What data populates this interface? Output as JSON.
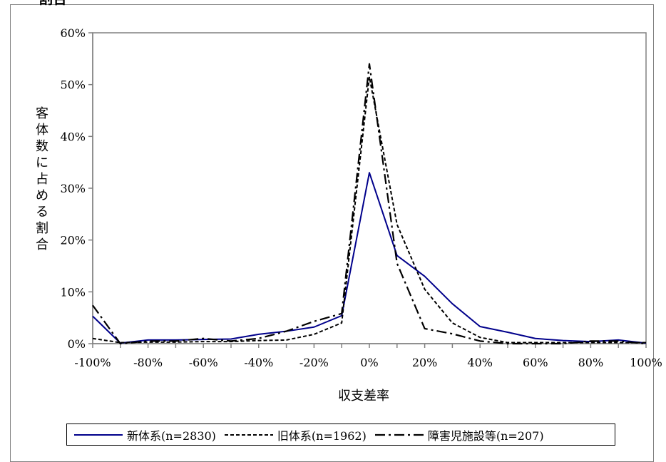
{
  "corner_text": "割合",
  "chart_data": {
    "type": "line",
    "x": [
      -100,
      -90,
      -80,
      -70,
      -60,
      -50,
      -40,
      -30,
      -20,
      -10,
      0,
      10,
      20,
      30,
      40,
      50,
      60,
      70,
      80,
      90,
      100
    ],
    "x_tick_labels": [
      "-100%",
      "-80%",
      "-60%",
      "-40%",
      "-20%",
      "0%",
      "20%",
      "40%",
      "60%",
      "80%",
      "100%"
    ],
    "y_tick_labels": [
      "0%",
      "10%",
      "20%",
      "30%",
      "40%",
      "50%",
      "60%"
    ],
    "xlim": [
      -100,
      100
    ],
    "ylim": [
      0,
      60
    ],
    "xlabel": "収支差率",
    "ylabel": "客体数に占める割合",
    "grid": false,
    "legend_position": "bottom",
    "series": [
      {
        "name": "新体系(n=2830)",
        "color": "#00008b",
        "dash": "solid",
        "values": [
          5.3,
          0.1,
          0.7,
          0.7,
          0.8,
          0.9,
          1.8,
          2.4,
          3.2,
          5.4,
          33.0,
          17.0,
          13.0,
          7.7,
          3.3,
          2.2,
          1.0,
          0.6,
          0.4,
          0.7,
          0.1
        ]
      },
      {
        "name": "旧体系(n=1962)",
        "color": "#000000",
        "dash": "dashed",
        "values": [
          1.0,
          0.2,
          0.3,
          0.3,
          0.4,
          0.4,
          0.6,
          0.7,
          1.8,
          4.0,
          51.5,
          23.0,
          10.5,
          4.0,
          1.2,
          0.2,
          0.2,
          0.2,
          0.2,
          0.2,
          0.2
        ]
      },
      {
        "name": "障害児施設等(n=207)",
        "color": "#000000",
        "dash": "dashdot",
        "values": [
          7.4,
          0.0,
          0.5,
          0.5,
          1.0,
          0.5,
          1.0,
          2.4,
          4.3,
          5.8,
          54.0,
          15.5,
          2.9,
          1.9,
          0.5,
          0.0,
          0.0,
          0.0,
          0.5,
          0.5,
          0.0
        ]
      }
    ]
  }
}
